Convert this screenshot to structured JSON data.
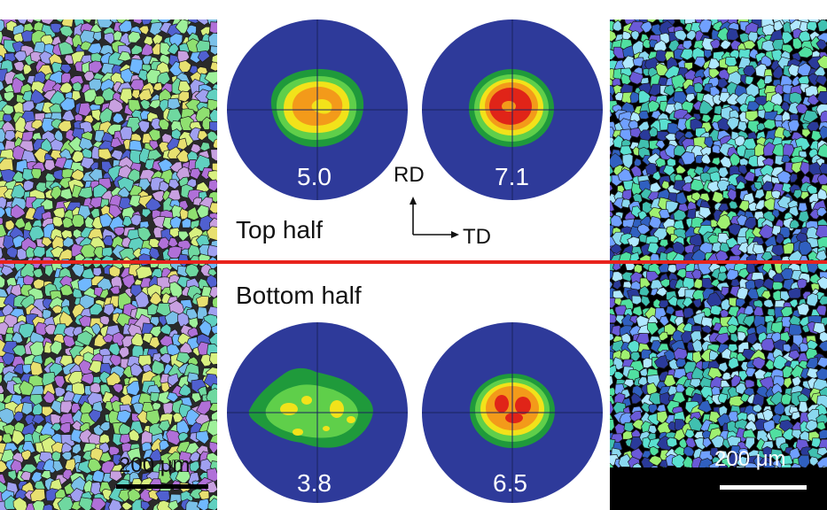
{
  "labels": {
    "top_half": "Top half",
    "bottom_half": "Bottom half",
    "rd": "RD",
    "td": "TD"
  },
  "pole_figures": [
    {
      "id": "top-left",
      "value": "5.0"
    },
    {
      "id": "top-right",
      "value": "7.1"
    },
    {
      "id": "bottom-left",
      "value": "3.8"
    },
    {
      "id": "bottom-right",
      "value": "6.5"
    }
  ],
  "scale_bars": {
    "left": "200 μm",
    "right": "200 μm"
  },
  "colors": {
    "pole_figure_background": "#2e3a9a",
    "divider_line": "#e8231c",
    "contour_green": "#1f9a3b",
    "contour_light_green": "#5fcf4a",
    "contour_yellow": "#f2e21a",
    "contour_orange": "#f39a1a",
    "contour_red": "#e02418"
  }
}
